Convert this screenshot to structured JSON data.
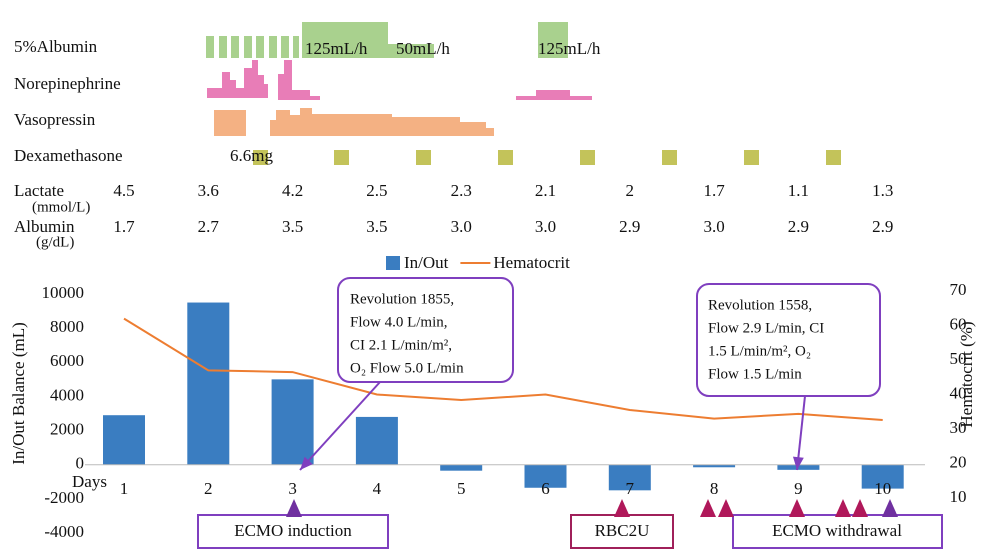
{
  "chart_data": {
    "type": "bar",
    "categories": [
      "1",
      "2",
      "3",
      "4",
      "5",
      "6",
      "7",
      "8",
      "9",
      "10"
    ],
    "x_label": "Days",
    "y_label": "In/Out Balance (mL)",
    "y2_label": "Hematocrit (%)",
    "series": [
      {
        "name": "In/Out",
        "type": "bar",
        "color": "#3a7dc1",
        "values": [
          2900,
          9500,
          5000,
          2800,
          -350,
          -1350,
          -1500,
          -150,
          -300,
          -1400
        ]
      },
      {
        "name": "Hematocrit",
        "type": "line",
        "axis": "y2",
        "color": "#ed7d31",
        "values": [
          62,
          47,
          46.5,
          40,
          38.4,
          40,
          35.5,
          33,
          34.4,
          32.6
        ]
      }
    ],
    "ylim": [
      -4000,
      10000
    ],
    "yticks": [
      -4000,
      -2000,
      0,
      2000,
      4000,
      6000,
      8000,
      10000
    ],
    "y2lim": [
      10,
      70
    ],
    "y2ticks": [
      10,
      20,
      30,
      40,
      50,
      60,
      70
    ],
    "legend": "top"
  },
  "timeline": {
    "rows": [
      "5%Albumin",
      "Norepinephrine",
      "Vasopressin",
      "Dexamethasone"
    ],
    "notes": [
      "125mL/h",
      "50mL/h",
      "125mL/h",
      "6.6mg"
    ]
  },
  "labs": [
    {
      "label": "Lactate",
      "unit": "(mmol/L)",
      "values": [
        "4.5",
        "3.6",
        "4.2",
        "2.5",
        "2.3",
        "2.1",
        "2",
        "1.7",
        "1.1",
        "1.3"
      ]
    },
    {
      "label": "Albumin",
      "unit": "(g/dL)",
      "values": [
        "1.7",
        "2.7",
        "3.5",
        "3.5",
        "3.0",
        "3.0",
        "2.9",
        "3.0",
        "2.9",
        "2.9"
      ]
    }
  ],
  "callouts": [
    {
      "lines": [
        "Revolution 1855,",
        "Flow  4.0 L/min,",
        "CI 2.1 L/min/m²,",
        "O₂ Flow 5.0 L/min"
      ]
    },
    {
      "lines": [
        "Revolution 1558,",
        "Flow  2.9 L/min,  CI",
        "1.5 L/min/m²,  O₂",
        "Flow 1.5 L/min"
      ]
    }
  ],
  "events": [
    "ECMO induction",
    "RBC2U",
    "ECMO withdrawal"
  ]
}
